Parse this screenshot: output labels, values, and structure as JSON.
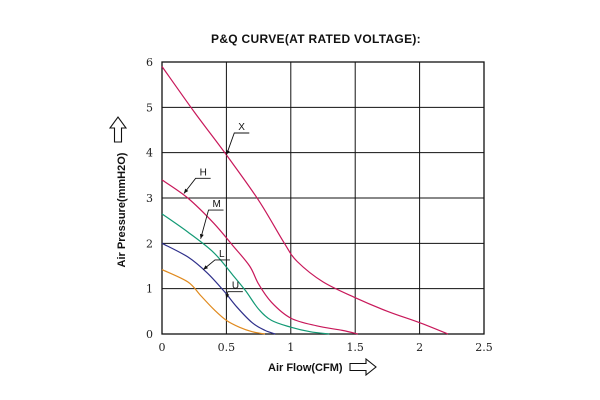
{
  "chart_data": {
    "type": "line",
    "title": "P&Q CURVE(AT RATED VOLTAGE):",
    "xlabel": "Air Flow(CFM)",
    "ylabel": "Air Pressure(mmH2O)",
    "xlim": [
      0,
      2.5
    ],
    "ylim": [
      0,
      6
    ],
    "x_ticks": [
      "0",
      "0.5",
      "1",
      "1.5",
      "2",
      "2.5"
    ],
    "y_ticks": [
      "0",
      "1",
      "2",
      "3",
      "4",
      "5",
      "6"
    ],
    "grid": true,
    "series": [
      {
        "name": "X",
        "color": "#c8185a",
        "points": [
          [
            0,
            5.9
          ],
          [
            0.25,
            4.9
          ],
          [
            0.5,
            3.95
          ],
          [
            0.75,
            2.95
          ],
          [
            0.95,
            2.0
          ],
          [
            1.05,
            1.6
          ],
          [
            1.25,
            1.15
          ],
          [
            1.5,
            0.8
          ],
          [
            1.75,
            0.5
          ],
          [
            2.0,
            0.25
          ],
          [
            2.22,
            0.0
          ]
        ]
      },
      {
        "name": "H",
        "color": "#c8185a",
        "points": [
          [
            0,
            3.4
          ],
          [
            0.2,
            3.0
          ],
          [
            0.4,
            2.45
          ],
          [
            0.55,
            1.95
          ],
          [
            0.68,
            1.5
          ],
          [
            0.75,
            1.1
          ],
          [
            0.85,
            0.7
          ],
          [
            1.0,
            0.35
          ],
          [
            1.2,
            0.18
          ],
          [
            1.4,
            0.08
          ],
          [
            1.52,
            0.0
          ]
        ]
      },
      {
        "name": "M",
        "color": "#139a75",
        "points": [
          [
            0,
            2.65
          ],
          [
            0.2,
            2.25
          ],
          [
            0.4,
            1.8
          ],
          [
            0.55,
            1.3
          ],
          [
            0.65,
            0.95
          ],
          [
            0.75,
            0.55
          ],
          [
            0.85,
            0.3
          ],
          [
            1.0,
            0.15
          ],
          [
            1.15,
            0.05
          ],
          [
            1.3,
            0.0
          ]
        ]
      },
      {
        "name": "L",
        "color": "#2e2f8a",
        "points": [
          [
            0,
            2.0
          ],
          [
            0.2,
            1.7
          ],
          [
            0.35,
            1.35
          ],
          [
            0.48,
            0.95
          ],
          [
            0.58,
            0.6
          ],
          [
            0.7,
            0.25
          ],
          [
            0.8,
            0.08
          ],
          [
            0.88,
            0.0
          ]
        ]
      },
      {
        "name": "U",
        "color": "#e08a1e",
        "points": [
          [
            0,
            1.42
          ],
          [
            0.2,
            1.15
          ],
          [
            0.3,
            0.85
          ],
          [
            0.4,
            0.55
          ],
          [
            0.5,
            0.3
          ],
          [
            0.6,
            0.15
          ],
          [
            0.7,
            0.05
          ],
          [
            0.8,
            0.0
          ]
        ]
      }
    ],
    "annotations": [
      {
        "text": "X",
        "point": [
          0.5,
          3.95
        ],
        "label_at": [
          0.6,
          4.5
        ]
      },
      {
        "text": "H",
        "point": [
          0.17,
          3.1
        ],
        "label_at": [
          0.3,
          3.5
        ]
      },
      {
        "text": "M",
        "point": [
          0.3,
          2.1
        ],
        "label_at": [
          0.4,
          2.8
        ]
      },
      {
        "text": "L",
        "point": [
          0.32,
          1.42
        ],
        "label_at": [
          0.45,
          1.7
        ]
      },
      {
        "text": "U",
        "point": [
          0.5,
          0.78
        ],
        "label_at": [
          0.55,
          1.0
        ]
      }
    ]
  }
}
